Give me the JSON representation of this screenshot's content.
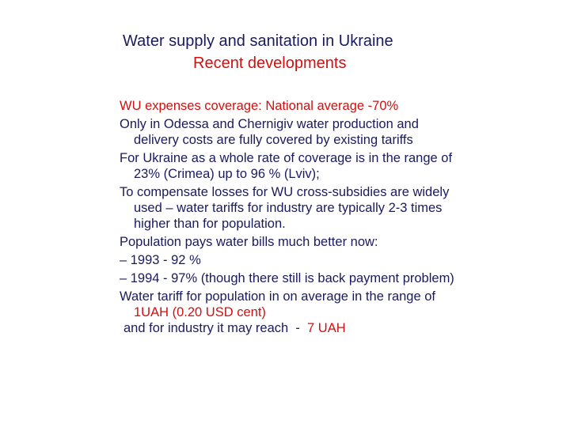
{
  "title": {
    "line1": "Water supply and sanitation in Ukraine",
    "line2": "Recent developments"
  },
  "body": {
    "p1": "WU expenses coverage: National average -70%",
    "p2_l1": "Only in Odessa and Chernigiv water production and",
    "p2_l2": "delivery costs are fully covered by existing tariffs",
    "p3_l1": "For Ukraine as a whole rate of coverage is in the range of",
    "p3_l2": "23% (Crimea) up to 96 % (Lviv);",
    "p4_l1": "To compensate losses for WU cross-subsidies are widely",
    "p4_l2": "used – water tariffs for industry are typically 2-3 times",
    "p4_l3": "higher than for population.",
    "p5": "Population pays water bills much better now:",
    "p6": "– 1993 -  92 %",
    "p7": "– 1994 -  97% (though there still is back payment problem)",
    "p8_l1": "Water tariff for population in on average in the range of",
    "p8_l2": "1UAH (0.20 USD cent)",
    "p9_pre": "and for industry it may reach  -  ",
    "p9_val": "7 UAH"
  }
}
